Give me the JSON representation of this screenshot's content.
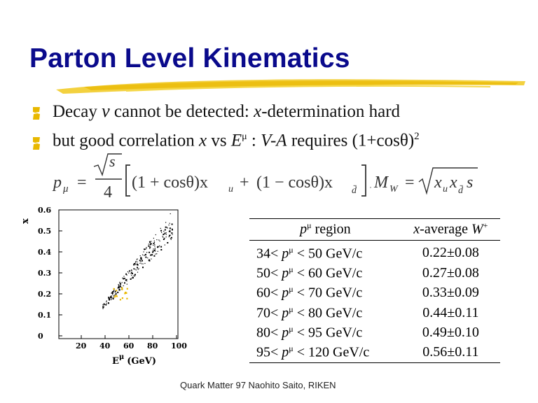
{
  "slide": {
    "title": "Parton Level Kinematics",
    "footer": "Quark Matter 97  Naohito Saito, RIKEN"
  },
  "bullets": [
    {
      "pre": "Decay ",
      "nu": "ν",
      "post": " cannot be detected: ",
      "var": "x",
      "tail": "-determination hard"
    },
    {
      "pre": "but good correlation ",
      "var": "x",
      "mid": " vs ",
      "E": "E",
      "Esup": "μ",
      "colon": " : ",
      "va": "V-A",
      "tail": " requires (1+cosθ)",
      "sq": "2"
    }
  ],
  "formula": {
    "lhs": "p",
    "lhs_sub": "μ",
    "eq": "=",
    "num": "s",
    "den": "4",
    "term1": "(1 + cosθ)x",
    "term1_sub": "u",
    "plus": "+",
    "term2": "(1 − cosθ)x",
    "term2_sub": "d̄",
    "mw": "M",
    "mw_sub": "W",
    "rhs": "x",
    "rhs_sub1": "u",
    "rhs_sub2": "d̄",
    "rhs_s": "s"
  },
  "table": {
    "headers": [
      "p^μ region",
      "x-average W⁺"
    ],
    "rows": [
      {
        "region": "34< p^μ < 50 GeV/c",
        "avg": "0.22±0.08"
      },
      {
        "region": "50< p^μ < 60 GeV/c",
        "avg": "0.27±0.08"
      },
      {
        "region": "60< p^μ < 70 GeV/c",
        "avg": "0.33±0.09"
      },
      {
        "region": "70< p^μ < 80 GeV/c",
        "avg": "0.44±0.11"
      },
      {
        "region": "80< p^μ < 95 GeV/c",
        "avg": "0.49±0.10"
      },
      {
        "region": "95< p^μ < 120 GeV/c",
        "avg": "0.56±0.11"
      }
    ]
  },
  "plot": {
    "ylabel": "x",
    "xlabel": "E",
    "xlabel_sup": "μ",
    "xlabel_unit": "(GeV)",
    "yticks": [
      "0.6",
      "0.5",
      "0.4",
      "0.3",
      "0.2",
      "0.1",
      "0"
    ],
    "xticks": [
      "20",
      "40",
      "60",
      "80",
      "100"
    ]
  },
  "colors": {
    "title": "#0a0a8c",
    "brush": "#f2cc2a",
    "bullet": "#e8b800"
  }
}
